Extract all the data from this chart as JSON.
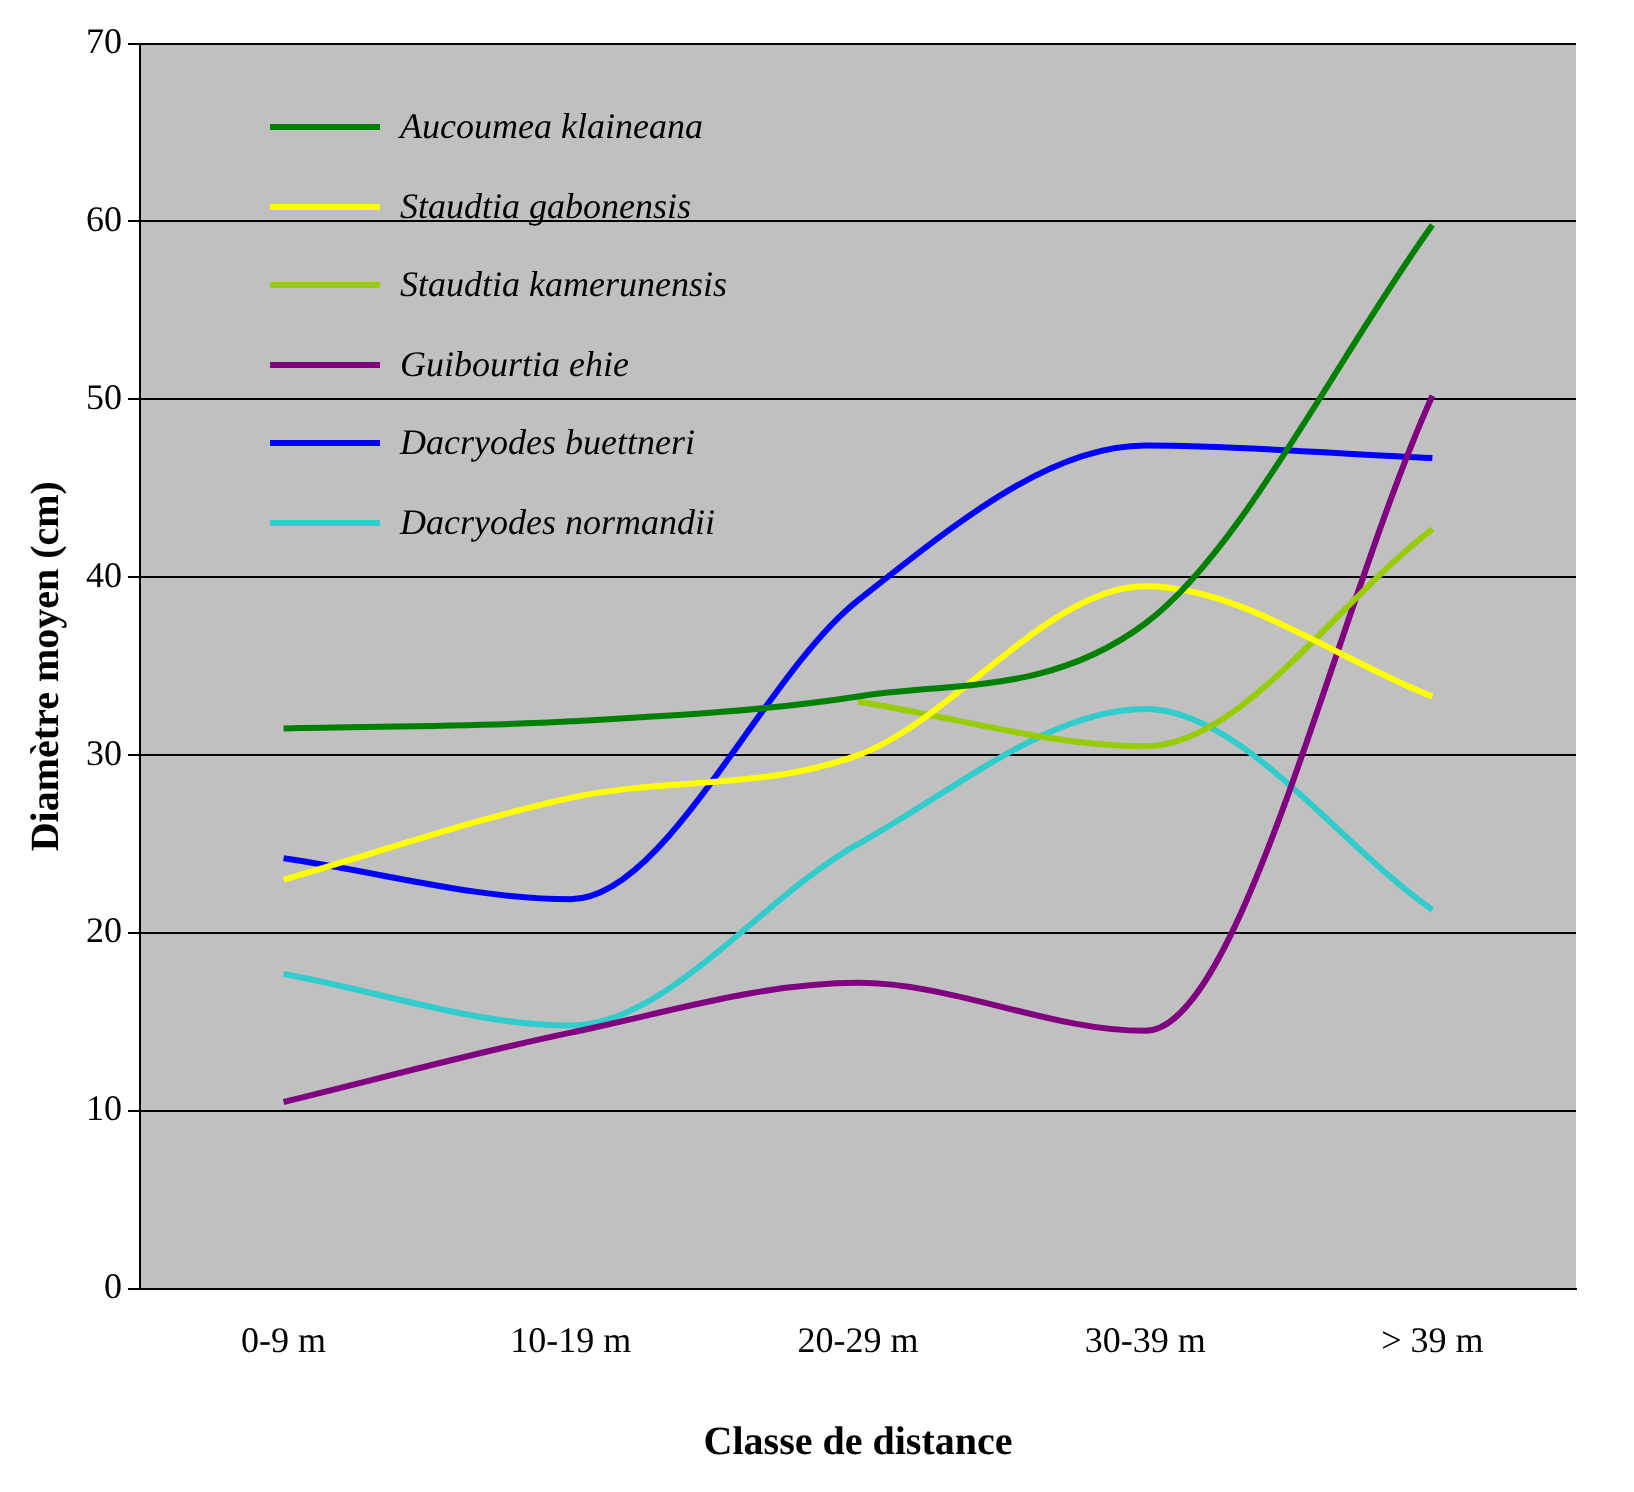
{
  "chart_data": {
    "type": "line",
    "xlabel": "Classe de distance",
    "ylabel": "Diamètre moyen (cm)",
    "categories": [
      "0-9 m",
      "10-19 m",
      "20-29 m",
      "30-39 m",
      "> 39 m"
    ],
    "series": [
      {
        "name": "Aucoumea klaineana",
        "color": "#008000",
        "values": [
          31.5,
          31.9,
          33.3,
          37.4,
          59.8
        ]
      },
      {
        "name": "Staudtia gabonensis",
        "color": "#ffff00",
        "values": [
          23,
          27.6,
          30,
          39.5,
          33.3
        ]
      },
      {
        "name": "Staudtia kamerunensis",
        "color": "#99cc00",
        "values": [
          null,
          null,
          33,
          30.5,
          42.7
        ]
      },
      {
        "name": "Guibourtia ehie",
        "color": "#800080",
        "values": [
          10.5,
          14.4,
          17.2,
          14.5,
          50.2
        ]
      },
      {
        "name": "Dacryodes buettneri",
        "color": "#0000ff",
        "values": [
          24.2,
          21.9,
          38.7,
          47.4,
          46.7
        ]
      },
      {
        "name": "Dacryodes normandii",
        "color": "#33cccc",
        "values": [
          17.7,
          14.8,
          25,
          32.6,
          21.3
        ]
      }
    ],
    "ylim": [
      0,
      70
    ],
    "yticks": [
      0,
      10,
      20,
      30,
      40,
      50,
      60,
      70
    ],
    "grid": "y",
    "legend": "top left",
    "marker": "none",
    "line_style": "solid"
  }
}
